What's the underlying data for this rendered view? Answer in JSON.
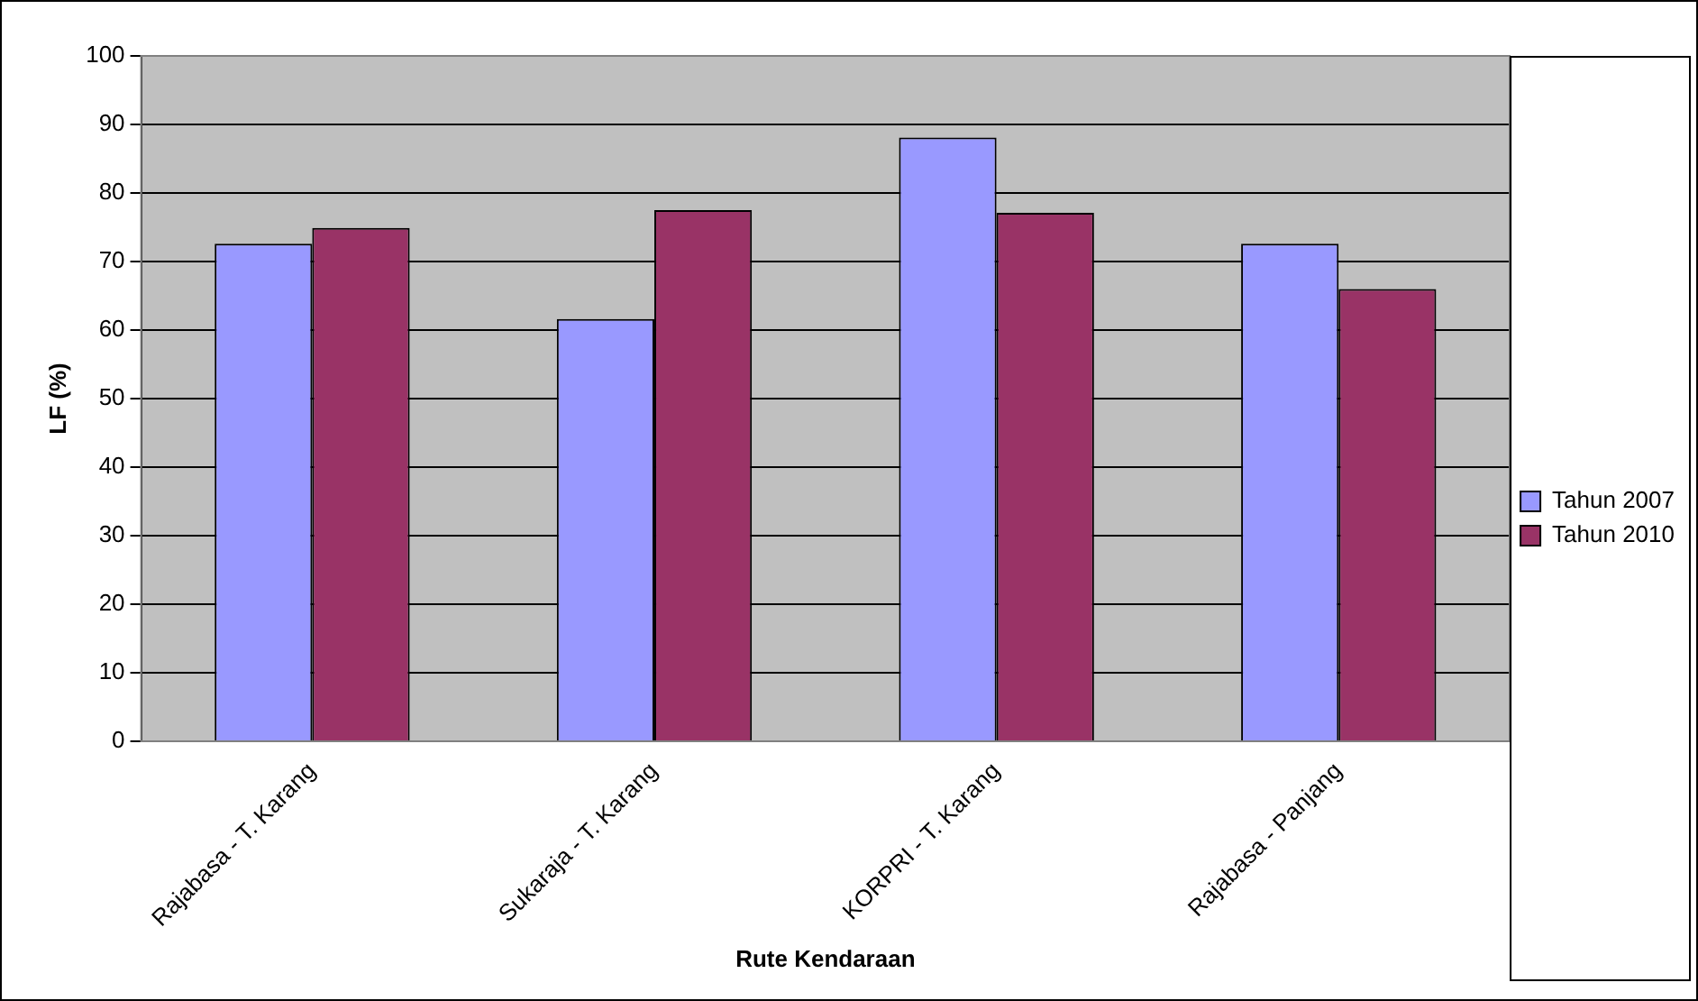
{
  "chart_data": {
    "type": "bar",
    "xlabel": "Rute Kendaraan",
    "ylabel": "LF (%)",
    "categories": [
      "Rajabasa - T. Karang",
      "Sukaraja - T. Karang",
      "KORPRI - T. Karang",
      "Rajabasa - Panjang"
    ],
    "series": [
      {
        "name": "Tahun 2007",
        "color": "#9999ff",
        "values": [
          72.6,
          61.6,
          88.1,
          72.6
        ]
      },
      {
        "name": "Tahun 2010",
        "color": "#993366",
        "values": [
          74.9,
          77.5,
          77.1,
          66.0
        ]
      }
    ],
    "ylim": [
      0,
      100
    ],
    "yticks": [
      0,
      10,
      20,
      30,
      40,
      50,
      60,
      70,
      80,
      90,
      100
    ],
    "grid": "y",
    "legend": "right"
  }
}
